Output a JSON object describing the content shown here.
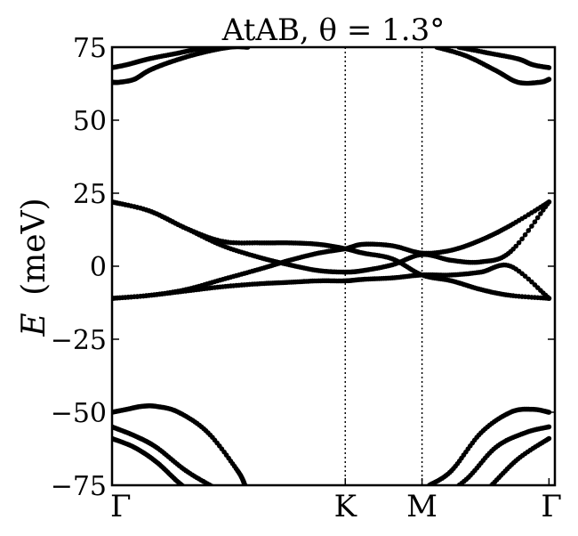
{
  "chart_data": {
    "type": "line",
    "title": "AtAB, θ = 1.3°",
    "ylabel_symbol": "E",
    "ylabel_unit": "(meV)",
    "ylim": [
      -75,
      75
    ],
    "yticks": [
      75,
      50,
      25,
      0,
      -25,
      -50,
      -75
    ],
    "ytick_labels": [
      "75",
      "50",
      "25",
      "0",
      "−25",
      "−50",
      "−75"
    ],
    "x_range": [
      0,
      3
    ],
    "xticks": [
      0,
      1.58,
      2.1,
      2.96
    ],
    "xtick_labels": [
      "Γ",
      "K",
      "M",
      "Γ"
    ],
    "high_symmetry_lines": [
      1.58,
      2.1
    ],
    "grid": false,
    "legend": "none",
    "series": [
      {
        "x": [
          0,
          0.25,
          0.5,
          0.75,
          1.0,
          1.2,
          1.4,
          1.58,
          1.7,
          1.9,
          2.1,
          2.3,
          2.5,
          2.7,
          2.96
        ],
        "values": [
          22,
          19,
          13,
          8.5,
          8,
          8,
          7.5,
          6,
          4.5,
          2.5,
          -3,
          -5,
          -8,
          -10,
          -11
        ]
      },
      {
        "x": [
          0,
          0.25,
          0.5,
          0.75,
          1.0,
          1.2,
          1.4,
          1.58,
          1.7,
          1.9,
          2.1,
          2.3,
          2.5,
          2.7,
          2.96
        ],
        "values": [
          22,
          19,
          13,
          7,
          3,
          0.5,
          -1.5,
          -2,
          -1.5,
          0.5,
          4,
          2,
          1.5,
          5,
          22
        ]
      },
      {
        "x": [
          0,
          0.25,
          0.5,
          0.75,
          1.0,
          1.2,
          1.4,
          1.58,
          1.7,
          1.9,
          2.1,
          2.3,
          2.5,
          2.7,
          2.96
        ],
        "values": [
          -11,
          -10,
          -8,
          -4.5,
          -1,
          2,
          4.5,
          6,
          7.5,
          7,
          4.5,
          5.5,
          9,
          14,
          22
        ]
      },
      {
        "x": [
          0,
          0.25,
          0.5,
          0.75,
          1.0,
          1.2,
          1.4,
          1.58,
          1.7,
          1.9,
          2.1,
          2.3,
          2.5,
          2.7,
          2.96
        ],
        "values": [
          -11,
          -10,
          -8.5,
          -7,
          -6,
          -5.5,
          -5,
          -5,
          -4.5,
          -4,
          -3,
          -3,
          -2,
          0,
          -11
        ]
      },
      {
        "x": [
          0,
          0.05,
          0.15,
          0.25,
          0.4,
          0.6,
          0.8,
          0.92
        ],
        "values": [
          63,
          63,
          64,
          67,
          70,
          73,
          75,
          75
        ]
      },
      {
        "x": [
          0,
          0.1,
          0.25,
          0.45,
          0.6,
          0.75
        ],
        "values": [
          68,
          69,
          71,
          73,
          74.5,
          75
        ]
      },
      {
        "x": [
          2.2,
          2.4,
          2.6,
          2.75,
          2.9,
          2.96
        ],
        "values": [
          75,
          72,
          67,
          63,
          63,
          64
        ]
      },
      {
        "x": [
          2.35,
          2.55,
          2.75,
          2.85,
          2.96
        ],
        "values": [
          75,
          73,
          71,
          69,
          68
        ]
      },
      {
        "x": [
          0,
          0.1,
          0.2,
          0.3,
          0.45,
          0.65,
          0.85,
          0.9
        ],
        "values": [
          -50,
          -49,
          -48,
          -48,
          -50,
          -57,
          -70,
          -75
        ]
      },
      {
        "x": [
          0,
          0.15,
          0.3,
          0.5,
          0.7,
          0.85
        ],
        "values": [
          -55,
          -58,
          -62,
          -70,
          -76,
          -80
        ]
      },
      {
        "x": [
          0,
          0.15,
          0.3,
          0.45,
          0.6,
          0.7
        ],
        "values": [
          -59,
          -62,
          -67,
          -74,
          -80,
          -85
        ]
      },
      {
        "x": [
          2.15,
          2.3,
          2.5,
          2.7,
          2.85,
          2.96
        ],
        "values": [
          -75,
          -70,
          -57,
          -50,
          -49,
          -50
        ]
      },
      {
        "x": [
          2.2,
          2.4,
          2.6,
          2.8,
          2.96
        ],
        "values": [
          -80,
          -73,
          -62,
          -57,
          -55
        ]
      },
      {
        "x": [
          2.35,
          2.55,
          2.75,
          2.96
        ],
        "values": [
          -85,
          -76,
          -66,
          -59
        ]
      }
    ]
  }
}
